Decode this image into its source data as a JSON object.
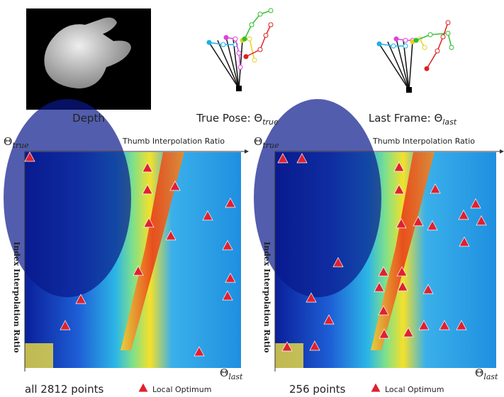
{
  "panels": [
    {
      "caption": "Depth"
    },
    {
      "caption": "True Pose: Θ",
      "sub": "true"
    },
    {
      "caption": "Last Frame: Θ",
      "sub": "last"
    }
  ],
  "plots": [
    {
      "corner_top": "Θ",
      "corner_top_sub": "true",
      "x_label": "Thumb Interpolation Ratio",
      "y_label": "Index Interpolation Ratio",
      "corner_bottom": "Θ",
      "corner_bottom_sub": "last",
      "caption": "all 2812 points",
      "legend": "Local Optimum"
    },
    {
      "corner_top": "Θ",
      "corner_top_sub": "true",
      "x_label": "Thumb Interpolation Ratio",
      "y_label": "Index Interpolation Ratio",
      "corner_bottom": "Θ",
      "corner_bottom_sub": "last",
      "caption": "256 points",
      "legend": "Local Optimum"
    }
  ]
}
